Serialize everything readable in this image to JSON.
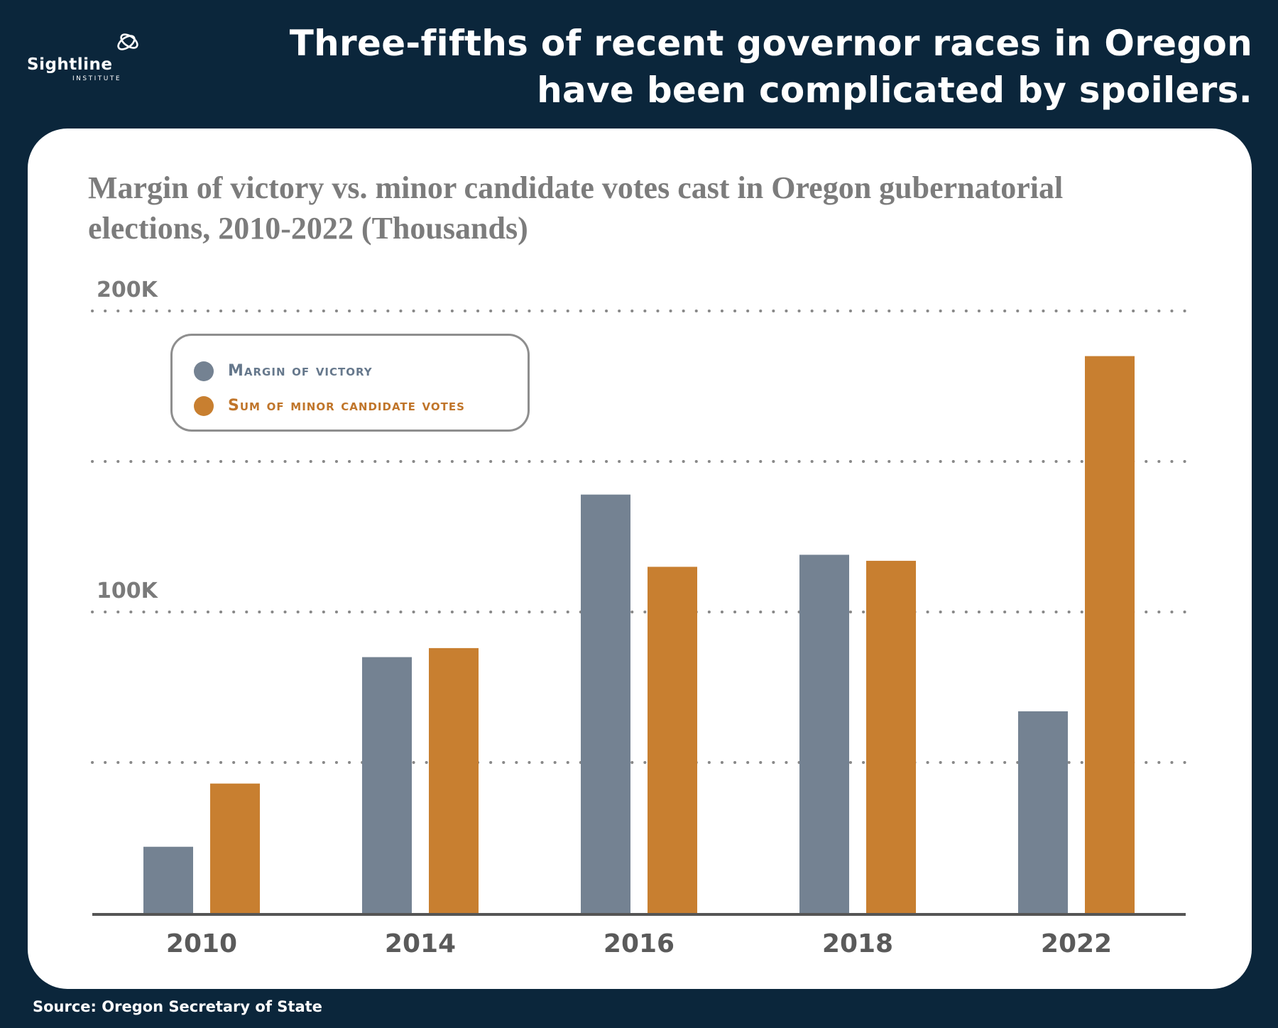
{
  "brand": {
    "name": "Sightline",
    "sub": "INSTITUTE"
  },
  "headline": "Three-fifths of recent governor races in Oregon have been complicated by spoilers.",
  "source": "Source: Oregon Secretary of State",
  "colors": {
    "background": "#0b263b",
    "panel": "#ffffff",
    "margin_series": "#748292",
    "minor_series": "#c87f30",
    "grid": "#888888",
    "axis": "#555555",
    "tick_text": "#5a5a5a"
  },
  "legend": {
    "items": [
      {
        "label": "Margin of victory",
        "color": "#748292",
        "text_color": "#66788c"
      },
      {
        "label": "Sum of minor candidate votes",
        "color": "#c87f30",
        "text_color": "#c0752a"
      }
    ]
  },
  "chart_data": {
    "type": "bar",
    "title": "Margin of victory vs. minor candidate votes cast in Oregon gubernatorial elections, 2010-2022 (Thousands)",
    "xlabel": "",
    "ylabel": "",
    "categories": [
      "2010",
      "2014",
      "2016",
      "2018",
      "2022"
    ],
    "series": [
      {
        "name": "Margin of victory",
        "values": [
          22,
          85,
          139,
          119,
          67
        ]
      },
      {
        "name": "Sum of minor candidate votes",
        "values": [
          43,
          88,
          115,
          117,
          185
        ]
      }
    ],
    "ylim": [
      0,
      200
    ],
    "yticks": [
      {
        "value": 200,
        "label": "200K"
      },
      {
        "value": 150,
        "label": ""
      },
      {
        "value": 100,
        "label": "100K"
      },
      {
        "value": 50,
        "label": ""
      }
    ],
    "grid": true,
    "grid_style": "dotted",
    "legend_position": "top-left"
  }
}
